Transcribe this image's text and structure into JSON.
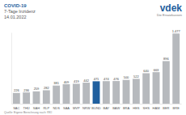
{
  "chart_data": {
    "type": "bar",
    "title": "COVID-19",
    "subtitle": "7-Tage Inzidenz",
    "date": "14.01.2022",
    "logo_text": "vdek",
    "logo_subtext": "Die Ersatzkassen",
    "source": "Quelle: Eigene Berechnung nach: RKI",
    "categories": [
      "SAC",
      "THÜ",
      "SAH",
      "RLP",
      "NDS",
      "SAA",
      "MVP",
      "NRW",
      "BUND",
      "BAY",
      "BAW",
      "BRA",
      "HES",
      "SHS",
      "HAM",
      "BER",
      "BRE"
    ],
    "values": [
      226,
      236,
      259,
      282,
      381,
      409,
      419,
      442,
      471,
      474,
      476,
      500,
      522,
      640,
      663,
      896,
      1477
    ],
    "value_labels": [
      "226",
      "236",
      "259",
      "282",
      "381",
      "409",
      "419",
      "442",
      "471",
      "474",
      "476",
      "500",
      "522",
      "640",
      "663",
      "896",
      "1.477"
    ],
    "colors": [
      "#b6b9bd",
      "#b6b9bd",
      "#b6b9bd",
      "#b6b9bd",
      "#b6b9bd",
      "#b6b9bd",
      "#b6b9bd",
      "#b6b9bd",
      "#1f5f9e",
      "#b6b9bd",
      "#b6b9bd",
      "#b6b9bd",
      "#b6b9bd",
      "#b6b9bd",
      "#b6b9bd",
      "#b6b9bd",
      "#b6b9bd"
    ],
    "ylim": [
      0,
      1500
    ],
    "data_labels": true,
    "tick_labels": "x",
    "grid": false
  }
}
